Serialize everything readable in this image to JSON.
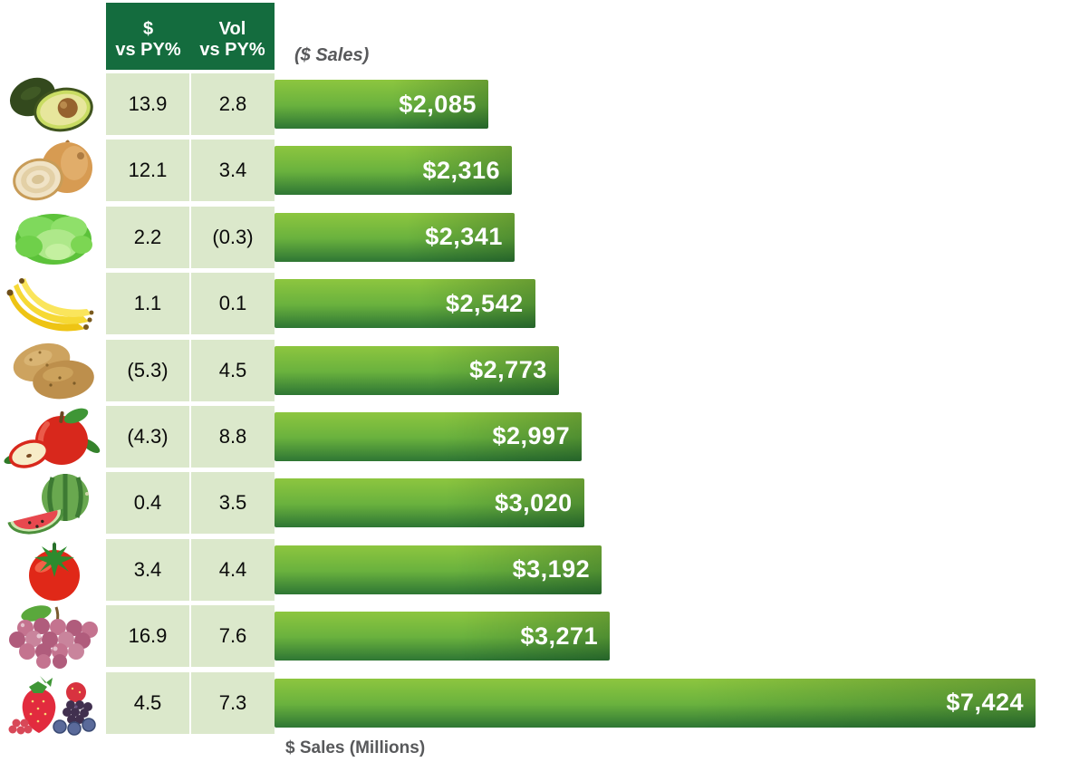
{
  "table_header": {
    "columns": [
      {
        "line1": "$",
        "line2": "vs PY%"
      },
      {
        "line1": "Vol",
        "line2": "vs PY%"
      }
    ]
  },
  "bar_section_label": "($ Sales)",
  "x_axis_label": "$ Sales (Millions)",
  "colors": {
    "header_green": "#146C3E",
    "cell_green": "#DBE8CB",
    "bar_gradient_top": "#8DC63F",
    "bar_gradient_bottom": "#2E7634",
    "label_gray": "#58595B",
    "bar_value_text": "#FFFFFF"
  },
  "rows": [
    {
      "item": "avocado",
      "icon": "avocado-icon",
      "dollar_vs_py": "13.9",
      "vol_vs_py": "2.8",
      "sales_label": "$2,085"
    },
    {
      "item": "onion",
      "icon": "onion-icon",
      "dollar_vs_py": "12.1",
      "vol_vs_py": "3.4",
      "sales_label": "$2,316"
    },
    {
      "item": "lettuce",
      "icon": "lettuce-icon",
      "dollar_vs_py": "2.2",
      "vol_vs_py": "(0.3)",
      "sales_label": "$2,341"
    },
    {
      "item": "banana",
      "icon": "banana-icon",
      "dollar_vs_py": "1.1",
      "vol_vs_py": "0.1",
      "sales_label": "$2,542"
    },
    {
      "item": "potato",
      "icon": "potato-icon",
      "dollar_vs_py": "(5.3)",
      "vol_vs_py": "4.5",
      "sales_label": "$2,773"
    },
    {
      "item": "apple",
      "icon": "apple-icon",
      "dollar_vs_py": "(4.3)",
      "vol_vs_py": "8.8",
      "sales_label": "$2,997"
    },
    {
      "item": "watermelon",
      "icon": "watermelon-icon",
      "dollar_vs_py": "0.4",
      "vol_vs_py": "3.5",
      "sales_label": "$3,020"
    },
    {
      "item": "tomato",
      "icon": "tomato-icon",
      "dollar_vs_py": "3.4",
      "vol_vs_py": "4.4",
      "sales_label": "$3,192"
    },
    {
      "item": "grapes",
      "icon": "grapes-icon",
      "dollar_vs_py": "16.9",
      "vol_vs_py": "7.6",
      "sales_label": "$3,271"
    },
    {
      "item": "berries",
      "icon": "berries-icon",
      "dollar_vs_py": "4.5",
      "vol_vs_py": "7.3",
      "sales_label": "$7,424"
    }
  ],
  "chart_data": {
    "type": "bar",
    "orientation": "horizontal",
    "title": "($ Sales)",
    "xlabel": "$ Sales (Millions)",
    "xlim": [
      0,
      7424
    ],
    "grid": false,
    "categories": [
      "Avocado",
      "Onion",
      "Lettuce",
      "Banana",
      "Potato",
      "Apple",
      "Watermelon",
      "Tomato",
      "Grapes",
      "Berries"
    ],
    "series": [
      {
        "name": "$ Sales (Millions)",
        "values": [
          2085,
          2316,
          2341,
          2542,
          2773,
          2997,
          3020,
          3192,
          3271,
          7424
        ]
      },
      {
        "name": "$ vs PY%",
        "values": [
          13.9,
          12.1,
          2.2,
          1.1,
          -5.3,
          -4.3,
          0.4,
          3.4,
          16.9,
          4.5
        ]
      },
      {
        "name": "Vol vs PY%",
        "values": [
          2.8,
          3.4,
          -0.3,
          0.1,
          4.5,
          8.8,
          3.5,
          4.4,
          7.6,
          7.3
        ]
      }
    ],
    "value_labels": [
      "$2,085",
      "$2,316",
      "$2,341",
      "$2,542",
      "$2,773",
      "$2,997",
      "$3,020",
      "$3,192",
      "$3,271",
      "$7,424"
    ]
  }
}
